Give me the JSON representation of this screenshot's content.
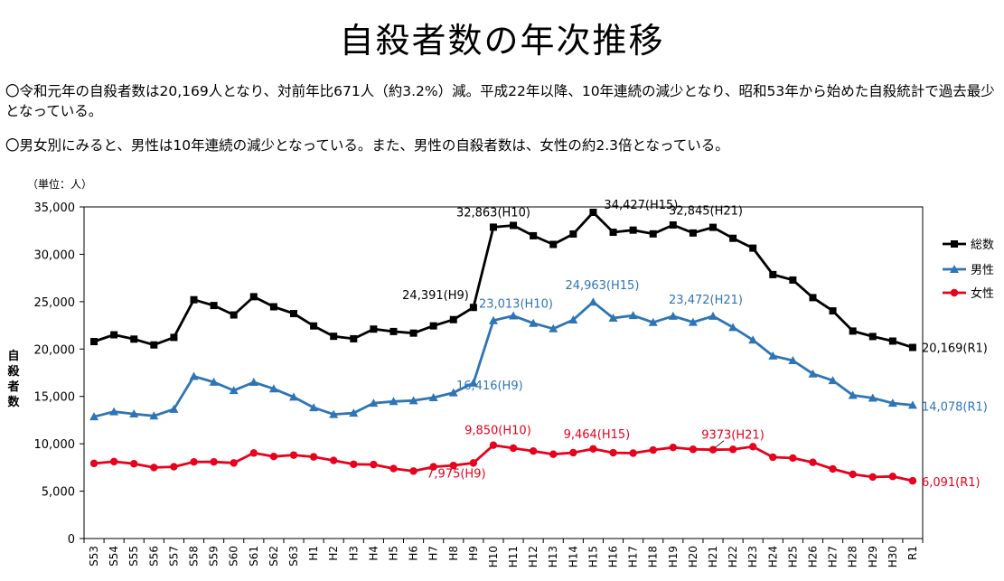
{
  "page": {
    "title": "自殺者数の年次推移",
    "summary_1": "〇令和元年の自殺者数は20,169人となり、対前年比671人（約3.2%）減。平成22年以降、10年連続の減少となり、昭和53年から始めた自殺統計で過去最少となっている。",
    "summary_2": "〇男女別にみると、男性は10年連続の減少となっている。また、男性の自殺者数は、女性の約2.3倍となっている。"
  },
  "chart_data": {
    "type": "line",
    "unit_label": "（単位：人）",
    "ylabel": "自殺者数",
    "ylim": [
      0,
      35000
    ],
    "yticks": [
      0,
      5000,
      10000,
      15000,
      20000,
      25000,
      30000,
      35000
    ],
    "ytick_labels": [
      "0",
      "5,000",
      "10,000",
      "15,000",
      "20,000",
      "25,000",
      "30,000",
      "35,000"
    ],
    "grid": false,
    "legend_position": "right",
    "categories": [
      "S53",
      "S54",
      "S55",
      "S56",
      "S57",
      "S58",
      "S59",
      "S60",
      "S61",
      "S62",
      "S63",
      "H1",
      "H2",
      "H3",
      "H4",
      "H5",
      "H6",
      "H7",
      "H8",
      "H9",
      "H10",
      "H11",
      "H12",
      "H13",
      "H14",
      "H15",
      "H16",
      "H17",
      "H18",
      "H19",
      "H20",
      "H21",
      "H22",
      "H23",
      "H24",
      "H25",
      "H26",
      "H27",
      "H28",
      "H29",
      "H30",
      "R1"
    ],
    "series": [
      {
        "name": "総数",
        "color": "#000000",
        "marker": "square",
        "values": [
          20788,
          21503,
          21048,
          20434,
          21228,
          25202,
          24596,
          23599,
          25524,
          24460,
          23742,
          22436,
          21346,
          21084,
          22104,
          21851,
          21679,
          22445,
          23104,
          24391,
          32863,
          33048,
          31957,
          31042,
          32143,
          34427,
          32325,
          32552,
          32155,
          33093,
          32249,
          32845,
          31690,
          30651,
          27858,
          27283,
          25427,
          24025,
          21897,
          21321,
          20840,
          20169
        ]
      },
      {
        "name": "男性",
        "color": "#2e75b6",
        "marker": "triangle",
        "values": [
          12859,
          13386,
          13155,
          12942,
          13654,
          17116,
          16508,
          15624,
          16497,
          15802,
          14934,
          13818,
          13102,
          13242,
          14296,
          14468,
          14560,
          14874,
          15393,
          16416,
          23013,
          23512,
          22727,
          22144,
          23080,
          24963,
          23272,
          23540,
          22813,
          23478,
          22831,
          23472,
          22283,
          20955,
          19273,
          18787,
          17386,
          16681,
          15121,
          14826,
          14290,
          14078
        ]
      },
      {
        "name": "女性",
        "color": "#e8001c",
        "marker": "circle",
        "values": [
          7929,
          8117,
          7893,
          7492,
          7574,
          8086,
          8088,
          7975,
          9027,
          8658,
          8808,
          8618,
          8244,
          7842,
          7808,
          7383,
          7119,
          7571,
          7711,
          7975,
          9850,
          9536,
          9230,
          8898,
          9063,
          9464,
          9053,
          9012,
          9342,
          9615,
          9418,
          9373,
          9407,
          9696,
          8585,
          8496,
          8041,
          7344,
          6776,
          6495,
          6550,
          6091
        ]
      }
    ],
    "annotations": [
      {
        "series": "総数",
        "category": "H9",
        "text": "24,391(H9)"
      },
      {
        "series": "総数",
        "category": "H10",
        "text": "32,863(H10)"
      },
      {
        "series": "総数",
        "category": "H15",
        "text": "34,427(H15)"
      },
      {
        "series": "総数",
        "category": "H21",
        "text": "32,845(H21)"
      },
      {
        "series": "総数",
        "category": "R1",
        "text": "20,169(R1)"
      },
      {
        "series": "男性",
        "category": "H9",
        "text": "16,416(H9)"
      },
      {
        "series": "男性",
        "category": "H10",
        "text": "23,013(H10)"
      },
      {
        "series": "男性",
        "category": "H15",
        "text": "24,963(H15)"
      },
      {
        "series": "男性",
        "category": "H21",
        "text": "23,472(H21)"
      },
      {
        "series": "男性",
        "category": "R1",
        "text": "14,078(R1)"
      },
      {
        "series": "女性",
        "category": "H9",
        "text": "7,975(H9)"
      },
      {
        "series": "女性",
        "category": "H10",
        "text": "9,850(H10)"
      },
      {
        "series": "女性",
        "category": "H15",
        "text": "9,464(H15)"
      },
      {
        "series": "女性",
        "category": "H21",
        "text": "9373(H21)"
      },
      {
        "series": "女性",
        "category": "R1",
        "text": "6,091(R1)"
      }
    ]
  }
}
